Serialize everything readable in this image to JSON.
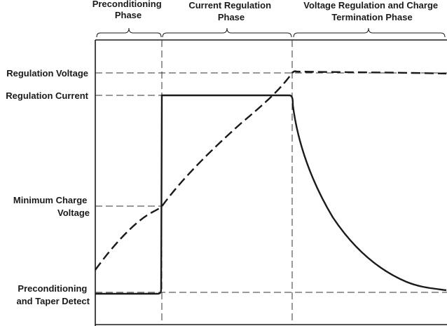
{
  "phases": [
    {
      "id": "preconditioning",
      "label_lines": [
        "Preconditioning",
        "Phase"
      ]
    },
    {
      "id": "current-regulation",
      "label_lines": [
        "Current Regulation",
        "Phase"
      ]
    },
    {
      "id": "voltage-regulation",
      "label_lines": [
        "Voltage Regulation and Charge",
        "Termination Phase"
      ]
    }
  ],
  "levels": {
    "regulation_voltage": "Regulation Voltage",
    "regulation_current": "Regulation Current",
    "minimum_charge_voltage_lines": [
      "Minimum Charge",
      "Voltage"
    ],
    "preconditioning_taper_lines": [
      "Preconditioning",
      "and Taper Detect"
    ]
  },
  "curves": [
    {
      "name": "charge-current",
      "style": "solid"
    },
    {
      "name": "battery-voltage",
      "style": "dashed"
    }
  ],
  "colors": {
    "line": "#1a1a1a",
    "guide": "#333333",
    "background": "#ffffff"
  }
}
